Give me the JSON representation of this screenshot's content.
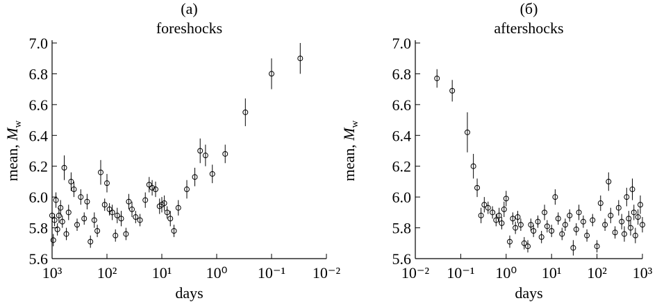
{
  "chart_data": [
    {
      "type": "scatter",
      "title": "(a)",
      "subtitle": "foreshocks",
      "xlabel": "days",
      "ylabel": "mean, ",
      "ylabel_symbol": "M",
      "ylabel_subscript": "w",
      "xscale": "log",
      "xlim": [
        1000,
        0.01
      ],
      "xticks": [
        {
          "value": 1000,
          "label": "10³"
        },
        {
          "value": 100,
          "label": "10²"
        },
        {
          "value": 10,
          "label": "10¹"
        },
        {
          "value": 1,
          "label": "10⁰"
        },
        {
          "value": 0.1,
          "label": "10⁻¹"
        },
        {
          "value": 0.01,
          "label": "10⁻²"
        }
      ],
      "ylim": [
        5.6,
        7.0
      ],
      "yticks": [
        5.6,
        5.8,
        {
          "value": 6.0,
          "label": "6.0"
        },
        6.2,
        6.4,
        6.6,
        6.8,
        {
          "value": 7.0,
          "label": "7.0"
        }
      ],
      "series": [
        {
          "color": "#000000",
          "x": [
            0.03,
            0.1,
            0.3,
            0.7,
            1.2,
            1.6,
            2,
            2.5,
            3.5,
            5,
            6,
            7,
            8,
            9,
            10,
            11,
            13,
            15,
            17,
            20,
            25,
            30,
            35,
            40,
            45,
            55,
            65,
            70,
            80,
            90,
            100,
            110,
            130,
            150,
            170,
            200,
            230,
            260,
            300,
            350,
            400,
            450,
            500,
            550,
            600,
            650,
            700,
            750,
            800,
            850,
            900,
            950,
            1000
          ],
          "values": [
            6.9,
            6.8,
            6.55,
            6.28,
            6.15,
            6.27,
            6.3,
            6.13,
            6.05,
            5.93,
            5.78,
            5.86,
            5.9,
            5.96,
            5.95,
            5.94,
            6.05,
            6.06,
            6.08,
            5.98,
            5.85,
            5.87,
            5.92,
            5.97,
            5.76,
            5.86,
            5.88,
            5.75,
            5.9,
            5.92,
            6.09,
            5.95,
            6.16,
            5.78,
            5.85,
            5.71,
            5.97,
            5.86,
            6.0,
            5.82,
            6.05,
            6.1,
            5.9,
            5.76,
            6.19,
            5.84,
            5.93,
            5.88,
            5.79,
            5.98,
            5.85,
            5.72,
            5.88
          ],
          "errors": [
            0.1,
            0.1,
            0.09,
            0.06,
            0.06,
            0.07,
            0.08,
            0.06,
            0.06,
            0.05,
            0.04,
            0.05,
            0.04,
            0.05,
            0.05,
            0.05,
            0.05,
            0.05,
            0.05,
            0.05,
            0.04,
            0.04,
            0.05,
            0.05,
            0.04,
            0.05,
            0.05,
            0.04,
            0.05,
            0.04,
            0.06,
            0.04,
            0.08,
            0.04,
            0.05,
            0.04,
            0.05,
            0.04,
            0.05,
            0.04,
            0.05,
            0.06,
            0.05,
            0.04,
            0.08,
            0.04,
            0.05,
            0.05,
            0.04,
            0.05,
            0.04,
            0.04,
            0.05
          ]
        }
      ]
    },
    {
      "type": "scatter",
      "title": "(б)",
      "subtitle": "aftershocks",
      "xlabel": "days",
      "ylabel": "mean, ",
      "ylabel_symbol": "M",
      "ylabel_subscript": "w",
      "xscale": "log",
      "xlim": [
        0.01,
        1000
      ],
      "xticks": [
        {
          "value": 0.01,
          "label": "10⁻²"
        },
        {
          "value": 0.1,
          "label": "10⁻¹"
        },
        {
          "value": 1,
          "label": "10⁰"
        },
        {
          "value": 10,
          "label": "10¹"
        },
        {
          "value": 100,
          "label": "10²"
        },
        {
          "value": 1000,
          "label": "10³"
        }
      ],
      "ylim": [
        5.6,
        7.0
      ],
      "yticks": [
        5.6,
        5.8,
        {
          "value": 6.0,
          "label": "6.0"
        },
        6.2,
        6.4,
        6.6,
        6.8,
        {
          "value": 7.0,
          "label": "7.0"
        }
      ],
      "series": [
        {
          "color": "#000000",
          "x": [
            0.03,
            0.065,
            0.14,
            0.19,
            0.23,
            0.28,
            0.33,
            0.4,
            0.5,
            0.6,
            0.7,
            0.8,
            0.9,
            1.0,
            1.2,
            1.4,
            1.6,
            1.8,
            2.1,
            2.5,
            3,
            3.5,
            4,
            5,
            6,
            7,
            8,
            10,
            12,
            14,
            17,
            20,
            25,
            30,
            35,
            40,
            50,
            60,
            80,
            100,
            120,
            150,
            180,
            200,
            250,
            300,
            350,
            400,
            450,
            500,
            550,
            600,
            650,
            700,
            800,
            900,
            1000
          ],
          "values": [
            6.77,
            6.69,
            6.42,
            6.2,
            6.06,
            5.88,
            5.95,
            5.93,
            5.9,
            5.85,
            5.88,
            5.83,
            5.92,
            5.99,
            5.71,
            5.86,
            5.8,
            5.87,
            5.82,
            5.7,
            5.68,
            5.82,
            5.78,
            5.84,
            5.74,
            5.9,
            5.81,
            5.78,
            6.0,
            5.86,
            5.76,
            5.82,
            5.88,
            5.67,
            5.79,
            5.9,
            5.84,
            5.75,
            5.85,
            5.68,
            5.96,
            5.82,
            6.1,
            5.88,
            5.77,
            5.93,
            5.84,
            5.76,
            6.0,
            5.86,
            5.8,
            6.05,
            5.9,
            5.75,
            5.87,
            5.95,
            5.82
          ],
          "errors": [
            0.06,
            0.07,
            0.13,
            0.08,
            0.06,
            0.05,
            0.05,
            0.04,
            0.04,
            0.04,
            0.05,
            0.04,
            0.05,
            0.05,
            0.04,
            0.04,
            0.04,
            0.04,
            0.04,
            0.04,
            0.04,
            0.04,
            0.04,
            0.04,
            0.04,
            0.05,
            0.04,
            0.04,
            0.05,
            0.04,
            0.04,
            0.04,
            0.04,
            0.05,
            0.04,
            0.05,
            0.04,
            0.04,
            0.04,
            0.04,
            0.05,
            0.04,
            0.06,
            0.05,
            0.04,
            0.05,
            0.05,
            0.05,
            0.06,
            0.05,
            0.05,
            0.07,
            0.05,
            0.05,
            0.05,
            0.06,
            0.05
          ]
        }
      ]
    }
  ]
}
